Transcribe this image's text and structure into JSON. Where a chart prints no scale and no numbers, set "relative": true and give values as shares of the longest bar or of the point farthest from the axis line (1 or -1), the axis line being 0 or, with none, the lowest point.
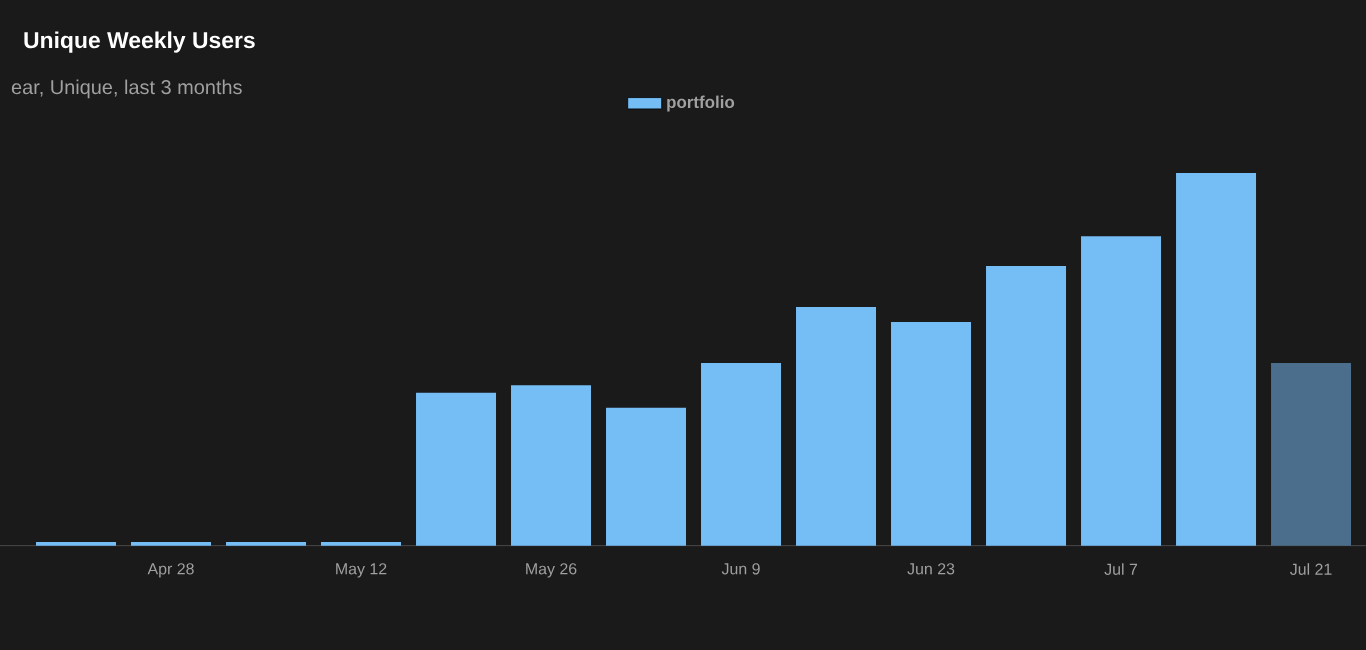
{
  "chart_data": {
    "type": "bar",
    "title": "Unique Weekly Users",
    "subtitle": "ear, Unique, last 3 months",
    "categories": [
      null,
      "Apr 28",
      null,
      "May 12",
      null,
      "May 26",
      null,
      "Jun 9",
      null,
      "Jun 23",
      null,
      "Jul 7",
      null,
      "Jul 21"
    ],
    "relative": true,
    "legend": "top",
    "series": [
      {
        "name": "portfolio",
        "color": "#74bdf5",
        "colors": [
          "#74bdf5",
          "#74bdf5",
          "#74bdf5",
          "#74bdf5",
          "#74bdf5",
          "#74bdf5",
          "#74bdf5",
          "#74bdf5",
          "#74bdf5",
          "#74bdf5",
          "#74bdf5",
          "#74bdf5",
          "#74bdf5",
          "#4b6e8c"
        ],
        "values": [
          0.01,
          0.01,
          0.01,
          0.01,
          0.41,
          0.43,
          0.37,
          0.49,
          0.64,
          0.6,
          0.75,
          0.83,
          1.0,
          0.49
        ]
      }
    ]
  }
}
